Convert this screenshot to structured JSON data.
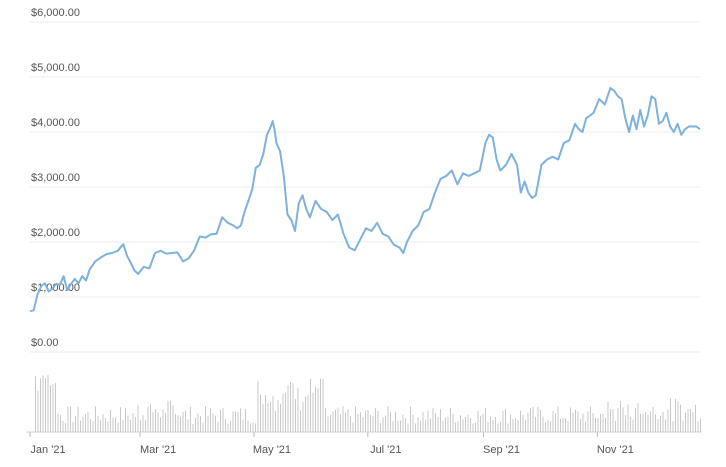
{
  "chart_data": {
    "type": "line",
    "title": "",
    "xlabel": "",
    "ylabel": "",
    "ylim": [
      0,
      6000
    ],
    "grid": true,
    "legend": "none",
    "y_ticks": [
      {
        "value": 0,
        "label": "$0.00"
      },
      {
        "value": 1000,
        "label": "$1,000.00"
      },
      {
        "value": 2000,
        "label": "$2,000.00"
      },
      {
        "value": 3000,
        "label": "$3,000.00"
      },
      {
        "value": 4000,
        "label": "$4,000.00"
      },
      {
        "value": 5000,
        "label": "$5,000.00"
      },
      {
        "value": 6000,
        "label": "$6,000.00"
      }
    ],
    "x_ticks": [
      {
        "date": "2021-01-01",
        "label": "Jan '21"
      },
      {
        "date": "2021-03-01",
        "label": "Mar '21"
      },
      {
        "date": "2021-05-01",
        "label": "May '21"
      },
      {
        "date": "2021-07-01",
        "label": "Jul '21"
      },
      {
        "date": "2021-09-01",
        "label": "Sep '21"
      },
      {
        "date": "2021-11-01",
        "label": "Nov '21"
      }
    ],
    "x_range": [
      "2021-01-01",
      "2021-12-26"
    ],
    "line_color": "#7eb1dd",
    "volume_color": "#c8c8c8",
    "series": [
      {
        "name": "",
        "points": [
          [
            "2021-01-01",
            740
          ],
          [
            "2021-01-03",
            760
          ],
          [
            "2021-01-05",
            1050
          ],
          [
            "2021-01-07",
            1200
          ],
          [
            "2021-01-09",
            1250
          ],
          [
            "2021-01-11",
            1100
          ],
          [
            "2021-01-13",
            1150
          ],
          [
            "2021-01-15",
            1240
          ],
          [
            "2021-01-17",
            1220
          ],
          [
            "2021-01-19",
            1380
          ],
          [
            "2021-01-21",
            1120
          ],
          [
            "2021-01-23",
            1240
          ],
          [
            "2021-01-25",
            1330
          ],
          [
            "2021-01-27",
            1250
          ],
          [
            "2021-01-29",
            1380
          ],
          [
            "2021-01-31",
            1300
          ],
          [
            "2021-02-02",
            1500
          ],
          [
            "2021-02-05",
            1650
          ],
          [
            "2021-02-08",
            1720
          ],
          [
            "2021-02-11",
            1780
          ],
          [
            "2021-02-14",
            1800
          ],
          [
            "2021-02-17",
            1840
          ],
          [
            "2021-02-20",
            1960
          ],
          [
            "2021-02-22",
            1750
          ],
          [
            "2021-02-24",
            1620
          ],
          [
            "2021-02-26",
            1480
          ],
          [
            "2021-02-28",
            1420
          ],
          [
            "2021-03-03",
            1550
          ],
          [
            "2021-03-06",
            1520
          ],
          [
            "2021-03-09",
            1800
          ],
          [
            "2021-03-12",
            1840
          ],
          [
            "2021-03-15",
            1790
          ],
          [
            "2021-03-18",
            1800
          ],
          [
            "2021-03-21",
            1810
          ],
          [
            "2021-03-24",
            1650
          ],
          [
            "2021-03-27",
            1700
          ],
          [
            "2021-03-30",
            1850
          ],
          [
            "2021-04-02",
            2100
          ],
          [
            "2021-04-05",
            2080
          ],
          [
            "2021-04-08",
            2140
          ],
          [
            "2021-04-11",
            2150
          ],
          [
            "2021-04-14",
            2450
          ],
          [
            "2021-04-17",
            2350
          ],
          [
            "2021-04-20",
            2300
          ],
          [
            "2021-04-22",
            2250
          ],
          [
            "2021-04-24",
            2300
          ],
          [
            "2021-04-26",
            2550
          ],
          [
            "2021-04-28",
            2750
          ],
          [
            "2021-04-30",
            2950
          ],
          [
            "2021-05-02",
            3350
          ],
          [
            "2021-05-04",
            3400
          ],
          [
            "2021-05-06",
            3600
          ],
          [
            "2021-05-08",
            3950
          ],
          [
            "2021-05-10",
            4100
          ],
          [
            "2021-05-11",
            4200
          ],
          [
            "2021-05-12",
            4050
          ],
          [
            "2021-05-13",
            3800
          ],
          [
            "2021-05-15",
            3650
          ],
          [
            "2021-05-17",
            3200
          ],
          [
            "2021-05-19",
            2500
          ],
          [
            "2021-05-21",
            2400
          ],
          [
            "2021-05-23",
            2200
          ],
          [
            "2021-05-25",
            2700
          ],
          [
            "2021-05-27",
            2850
          ],
          [
            "2021-05-29",
            2600
          ],
          [
            "2021-05-31",
            2450
          ],
          [
            "2021-06-03",
            2750
          ],
          [
            "2021-06-06",
            2600
          ],
          [
            "2021-06-09",
            2550
          ],
          [
            "2021-06-12",
            2400
          ],
          [
            "2021-06-15",
            2500
          ],
          [
            "2021-06-18",
            2150
          ],
          [
            "2021-06-21",
            1900
          ],
          [
            "2021-06-24",
            1850
          ],
          [
            "2021-06-27",
            2050
          ],
          [
            "2021-06-30",
            2250
          ],
          [
            "2021-07-03",
            2200
          ],
          [
            "2021-07-06",
            2350
          ],
          [
            "2021-07-09",
            2150
          ],
          [
            "2021-07-12",
            2100
          ],
          [
            "2021-07-15",
            1950
          ],
          [
            "2021-07-18",
            1900
          ],
          [
            "2021-07-20",
            1800
          ],
          [
            "2021-07-22",
            2000
          ],
          [
            "2021-07-25",
            2200
          ],
          [
            "2021-07-28",
            2300
          ],
          [
            "2021-07-31",
            2550
          ],
          [
            "2021-08-03",
            2600
          ],
          [
            "2021-08-06",
            2900
          ],
          [
            "2021-08-09",
            3150
          ],
          [
            "2021-08-12",
            3200
          ],
          [
            "2021-08-15",
            3300
          ],
          [
            "2021-08-18",
            3050
          ],
          [
            "2021-08-21",
            3250
          ],
          [
            "2021-08-24",
            3200
          ],
          [
            "2021-08-27",
            3250
          ],
          [
            "2021-08-30",
            3300
          ],
          [
            "2021-09-02",
            3800
          ],
          [
            "2021-09-04",
            3950
          ],
          [
            "2021-09-06",
            3900
          ],
          [
            "2021-09-08",
            3500
          ],
          [
            "2021-09-10",
            3300
          ],
          [
            "2021-09-13",
            3400
          ],
          [
            "2021-09-16",
            3600
          ],
          [
            "2021-09-19",
            3400
          ],
          [
            "2021-09-21",
            2900
          ],
          [
            "2021-09-23",
            3100
          ],
          [
            "2021-09-25",
            2900
          ],
          [
            "2021-09-27",
            2800
          ],
          [
            "2021-09-29",
            2850
          ],
          [
            "2021-10-02",
            3400
          ],
          [
            "2021-10-05",
            3500
          ],
          [
            "2021-10-08",
            3550
          ],
          [
            "2021-10-11",
            3500
          ],
          [
            "2021-10-14",
            3800
          ],
          [
            "2021-10-17",
            3850
          ],
          [
            "2021-10-20",
            4150
          ],
          [
            "2021-10-22",
            4050
          ],
          [
            "2021-10-24",
            4000
          ],
          [
            "2021-10-26",
            4250
          ],
          [
            "2021-10-28",
            4300
          ],
          [
            "2021-10-30",
            4350
          ],
          [
            "2021-11-02",
            4600
          ],
          [
            "2021-11-05",
            4500
          ],
          [
            "2021-11-08",
            4800
          ],
          [
            "2021-11-10",
            4750
          ],
          [
            "2021-11-12",
            4650
          ],
          [
            "2021-11-14",
            4600
          ],
          [
            "2021-11-16",
            4250
          ],
          [
            "2021-11-18",
            4000
          ],
          [
            "2021-11-20",
            4300
          ],
          [
            "2021-11-22",
            4050
          ],
          [
            "2021-11-24",
            4400
          ],
          [
            "2021-11-26",
            4100
          ],
          [
            "2021-11-28",
            4300
          ],
          [
            "2021-11-30",
            4650
          ],
          [
            "2021-12-02",
            4600
          ],
          [
            "2021-12-04",
            4150
          ],
          [
            "2021-12-06",
            4200
          ],
          [
            "2021-12-08",
            4350
          ],
          [
            "2021-12-10",
            4100
          ],
          [
            "2021-12-12",
            4000
          ],
          [
            "2021-12-14",
            4150
          ],
          [
            "2021-12-16",
            3950
          ],
          [
            "2021-12-18",
            4050
          ],
          [
            "2021-12-20",
            4100
          ],
          [
            "2021-12-22",
            4100
          ],
          [
            "2021-12-24",
            4100
          ],
          [
            "2021-12-26",
            4050
          ]
        ]
      }
    ]
  }
}
